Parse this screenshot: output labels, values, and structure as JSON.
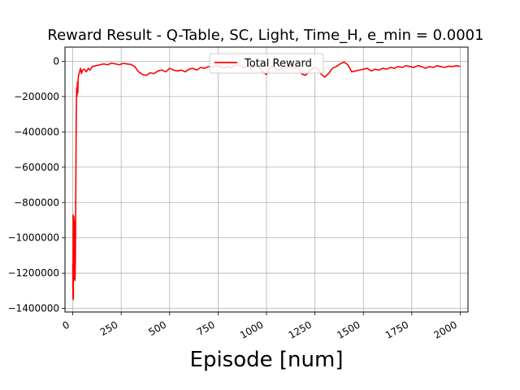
{
  "chart_data": {
    "type": "line",
    "title": "Reward Result - Q-Table, SC, Light, Time_H, e_min = 0.0001",
    "xlabel": "Episode [num]",
    "ylabel": "",
    "xlim": [
      -40,
      2040
    ],
    "ylim": [
      -1420000,
      80000
    ],
    "xticks": [
      0,
      250,
      500,
      750,
      1000,
      1250,
      1500,
      1750,
      2000
    ],
    "yticks": [
      0,
      -200000,
      -400000,
      -600000,
      -800000,
      -1000000,
      -1200000,
      -1400000
    ],
    "xtick_labels": [
      "0",
      "250",
      "500",
      "750",
      "1000",
      "1250",
      "1500",
      "1750",
      "2000"
    ],
    "ytick_labels": [
      "0",
      "−200000",
      "−400000",
      "−600000",
      "−800000",
      "−1000000",
      "−1200000",
      "−1400000"
    ],
    "grid": true,
    "legend_position": "top-center",
    "series": [
      {
        "name": "Total Reward",
        "color": "#ff0000",
        "x": [
          0,
          1,
          2,
          3,
          4,
          5,
          6,
          7,
          8,
          9,
          10,
          12,
          14,
          16,
          18,
          20,
          22,
          24,
          26,
          28,
          30,
          35,
          40,
          45,
          50,
          60,
          70,
          80,
          90,
          100,
          120,
          140,
          160,
          180,
          200,
          220,
          240,
          260,
          280,
          300,
          320,
          340,
          360,
          380,
          400,
          420,
          440,
          460,
          480,
          500,
          520,
          540,
          560,
          580,
          600,
          620,
          640,
          660,
          680,
          700,
          720,
          740,
          760,
          780,
          800,
          820,
          840,
          860,
          880,
          900,
          920,
          940,
          960,
          980,
          1000,
          1020,
          1040,
          1060,
          1080,
          1100,
          1120,
          1140,
          1160,
          1180,
          1200,
          1220,
          1240,
          1260,
          1280,
          1300,
          1320,
          1340,
          1360,
          1380,
          1400,
          1420,
          1440,
          1460,
          1480,
          1500,
          1520,
          1540,
          1560,
          1580,
          1600,
          1620,
          1640,
          1660,
          1680,
          1700,
          1720,
          1740,
          1760,
          1780,
          1800,
          1820,
          1840,
          1860,
          1880,
          1900,
          1920,
          1940,
          1960,
          1980,
          2000
        ],
        "y": [
          -1150000,
          -1340000,
          -870000,
          -1350000,
          -900000,
          -1200000,
          -880000,
          -1240000,
          -900000,
          -1210000,
          -1000000,
          -1240000,
          -1100000,
          -700000,
          -300000,
          -150000,
          -200000,
          -120000,
          -180000,
          -100000,
          -80000,
          -60000,
          -40000,
          -70000,
          -50000,
          -45000,
          -60000,
          -40000,
          -50000,
          -30000,
          -25000,
          -20000,
          -15000,
          -20000,
          -10000,
          -15000,
          -20000,
          -12000,
          -15000,
          -18000,
          -30000,
          -60000,
          -75000,
          -80000,
          -65000,
          -70000,
          -55000,
          -50000,
          -60000,
          -40000,
          -50000,
          -55000,
          -50000,
          -60000,
          -45000,
          -40000,
          -50000,
          -35000,
          -40000,
          -30000,
          -35000,
          -25000,
          -30000,
          -40000,
          -30000,
          -35000,
          -20000,
          -25000,
          -35000,
          -30000,
          -40000,
          -30000,
          -25000,
          -60000,
          -75000,
          -30000,
          -35000,
          -50000,
          -40000,
          -35000,
          -30000,
          -40000,
          -35000,
          -70000,
          -80000,
          -60000,
          -40000,
          -35000,
          -70000,
          -90000,
          -70000,
          -40000,
          -30000,
          -15000,
          -5000,
          -20000,
          -60000,
          -55000,
          -50000,
          -45000,
          -40000,
          -55000,
          -45000,
          -50000,
          -40000,
          -45000,
          -35000,
          -40000,
          -30000,
          -35000,
          -25000,
          -30000,
          -35000,
          -25000,
          -30000,
          -40000,
          -30000,
          -35000,
          -25000,
          -30000,
          -35000,
          -28000,
          -30000,
          -25000,
          -30000
        ]
      }
    ]
  }
}
